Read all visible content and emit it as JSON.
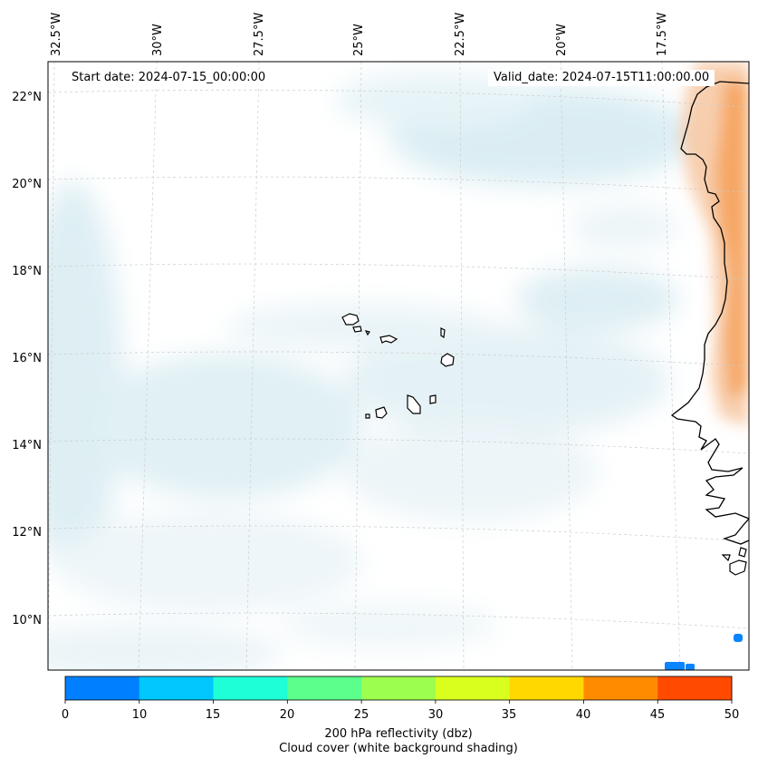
{
  "map": {
    "start_date": "Start date: 2024-07-15_00:00:00",
    "valid_date": "Valid_date: 2024-07-15T11:00:00.00",
    "lon_labels": [
      "32.5°W",
      "30°W",
      "27.5°W",
      "25°W",
      "22.5°W",
      "20°W",
      "17.5°W"
    ],
    "lat_labels": [
      "22°N",
      "20°N",
      "18°N",
      "16°N",
      "14°N",
      "12°N",
      "10°N"
    ]
  },
  "colorbar": {
    "ticks": [
      "0",
      "10",
      "15",
      "20",
      "25",
      "30",
      "35",
      "40",
      "45",
      "50"
    ],
    "colors": [
      "#0080ff",
      "#00c8ff",
      "#1effd8",
      "#5cff8c",
      "#9cff50",
      "#d8ff1e",
      "#ffd800",
      "#ff8c00",
      "#ff4a00"
    ],
    "label": "200 hPa reflectivity (dbz)",
    "sublabel": "Cloud cover (white background shading)"
  },
  "colors": {
    "cloud": "#d3e9f0",
    "land_warm": "#f4a35c",
    "coast": "#000000",
    "grid": "#cfcfcf"
  }
}
